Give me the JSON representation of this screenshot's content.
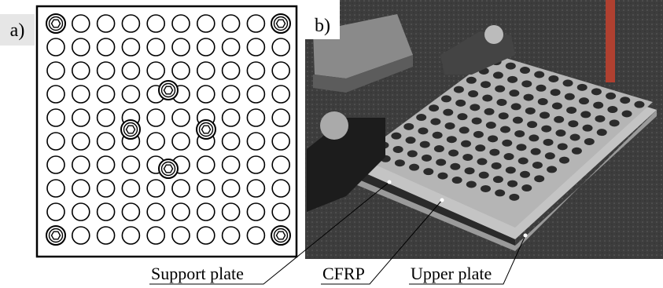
{
  "panels": [
    {
      "label": "a)"
    },
    {
      "label": "b)"
    }
  ],
  "callouts": [
    {
      "label": "Support plate"
    },
    {
      "label": "CFRP"
    },
    {
      "label": "Upper plate"
    }
  ]
}
